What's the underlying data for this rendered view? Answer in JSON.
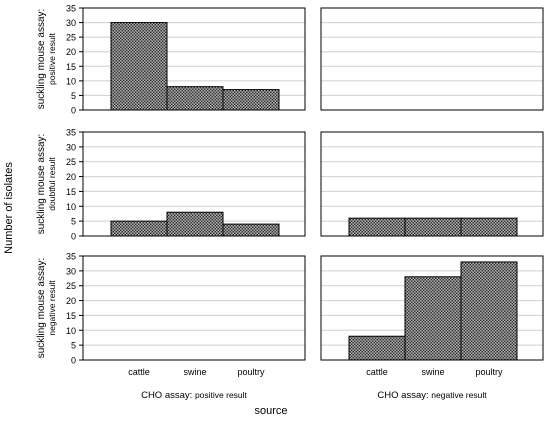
{
  "chart_data": {
    "type": "bar",
    "ylabel": "Number of isolates",
    "xlabel": "source",
    "categories": [
      "cattle",
      "swine",
      "poultry"
    ],
    "ylim": [
      0,
      35
    ],
    "yticks": [
      0,
      5,
      10,
      15,
      20,
      25,
      30,
      35
    ],
    "grid": true,
    "fill_pattern": "crosshatch",
    "columns": [
      {
        "label_prefix": "CHO assay:",
        "label_suffix": "positive result"
      },
      {
        "label_prefix": "CHO assay:",
        "label_suffix": "negative result"
      }
    ],
    "rows": [
      {
        "label_line1": "suckling mouse assay:",
        "label_line2": "positive result"
      },
      {
        "label_line1": "suckling mouse assay:",
        "label_line2": "doubtful result"
      },
      {
        "label_line1": "suckling mouse assay:",
        "label_line2": "negative result"
      }
    ],
    "panels": [
      {
        "row": 0,
        "col": 0,
        "values": [
          30,
          8,
          7
        ]
      },
      {
        "row": 0,
        "col": 1,
        "values": [
          0,
          0,
          0
        ]
      },
      {
        "row": 1,
        "col": 0,
        "values": [
          5,
          8,
          4
        ]
      },
      {
        "row": 1,
        "col": 1,
        "values": [
          6,
          6,
          6
        ]
      },
      {
        "row": 2,
        "col": 0,
        "values": [
          0,
          0,
          0
        ]
      },
      {
        "row": 2,
        "col": 1,
        "values": [
          8,
          28,
          33
        ]
      }
    ]
  }
}
